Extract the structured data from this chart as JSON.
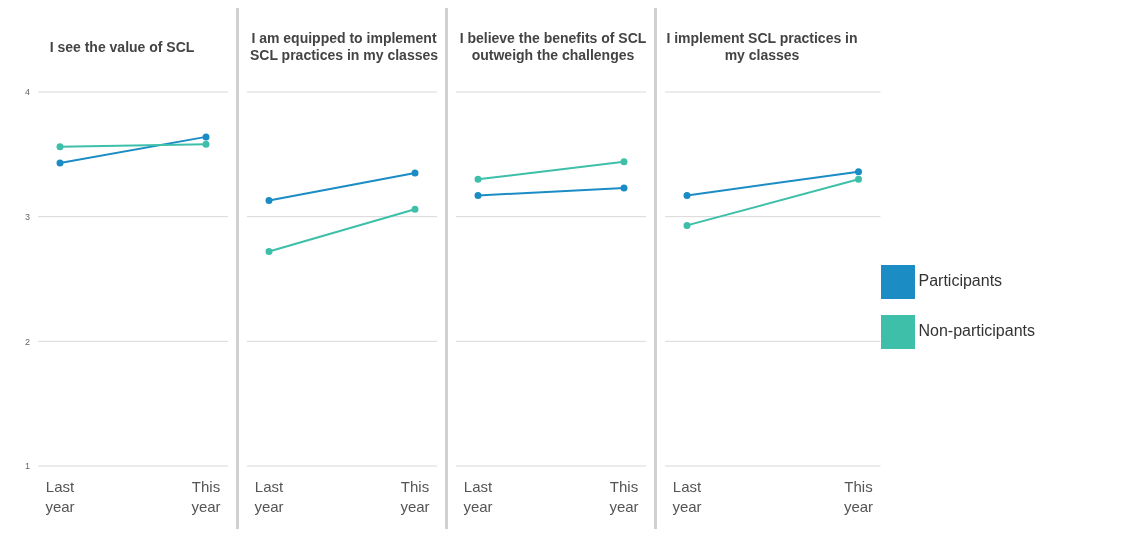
{
  "chart_data": [
    {
      "type": "line",
      "title": "I see the value of SCL",
      "categories": [
        "Last year",
        "This year"
      ],
      "ylim": [
        1,
        4
      ],
      "yticks": [
        1,
        2,
        3,
        4
      ],
      "grid": "y",
      "marker": "circle",
      "legend": false,
      "series": [
        {
          "color": "#1b8cc4",
          "values": [
            3.43,
            3.64
          ]
        },
        {
          "color": "#3dbfa9",
          "values": [
            3.56,
            3.58
          ]
        }
      ]
    },
    {
      "type": "line",
      "title": "I am equipped to implement SCL practices in my classes",
      "categories": [
        "Last year",
        "This year"
      ],
      "ylim": [
        1,
        4
      ],
      "yticks": [
        1,
        2,
        3,
        4
      ],
      "grid": "y",
      "marker": "circle",
      "legend": false,
      "tick_labels": "x",
      "series": [
        {
          "color": "#1b8cc4",
          "values": [
            3.13,
            3.35
          ]
        },
        {
          "color": "#3dbfa9",
          "values": [
            2.72,
            3.06
          ]
        }
      ]
    },
    {
      "type": "line",
      "title": "I believe the benefits of SCL outweigh the challenges",
      "categories": [
        "Last year",
        "This year"
      ],
      "ylim": [
        1,
        4
      ],
      "yticks": [
        1,
        2,
        3,
        4
      ],
      "grid": "y",
      "marker": "circle",
      "legend": false,
      "tick_labels": "x",
      "series": [
        {
          "color": "#1b8cc4",
          "values": [
            3.17,
            3.23
          ]
        },
        {
          "color": "#3dbfa9",
          "values": [
            3.3,
            3.44
          ]
        }
      ]
    },
    {
      "type": "line",
      "title": "I implement SCL practices in my classes",
      "categories": [
        "Last year",
        "This year"
      ],
      "ylim": [
        1,
        4
      ],
      "yticks": [
        1,
        2,
        3,
        4
      ],
      "grid": "y",
      "marker": "circle",
      "legend": "right",
      "tick_labels": "x",
      "series": [
        {
          "name": "Participants",
          "color": "#1b8cc4",
          "values": [
            3.17,
            3.36
          ]
        },
        {
          "name": "Non-participants",
          "color": "#3dbfa9",
          "values": [
            2.93,
            3.3
          ]
        }
      ]
    }
  ]
}
